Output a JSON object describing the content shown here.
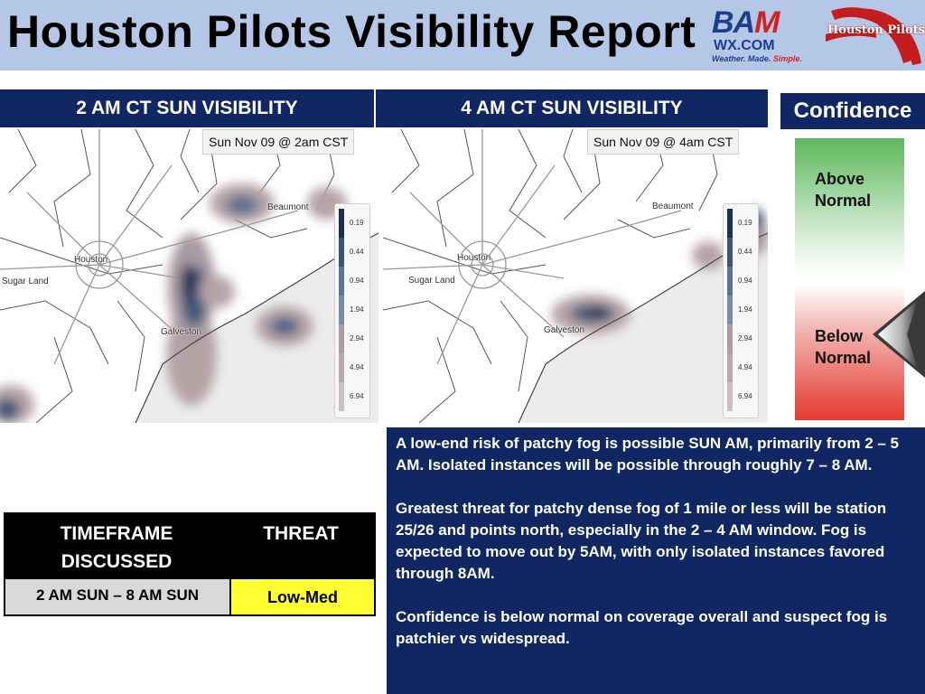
{
  "header": {
    "title": "Houston Pilots Visibility Report",
    "logo_bam": {
      "brand_left": "BA",
      "brand_mid": "M",
      "site": "WX.COM",
      "tagline_left": "Weather. Made. ",
      "tagline_right": "Simple."
    },
    "logo_hp": {
      "text": "Houston Pilots"
    }
  },
  "panels": [
    {
      "heading": "2 AM CT SUN VISIBILITY",
      "timestamp": "Sun Nov 09 @ 2am CST",
      "cities": [
        "Beaumont",
        "Houston",
        "Sugar Land",
        "Galveston"
      ]
    },
    {
      "heading": "4 AM CT SUN VISIBILITY",
      "timestamp": "Sun Nov 09 @ 4am CST",
      "cities": [
        "Beaumont",
        "Houston",
        "Sugar Land",
        "Galveston"
      ]
    }
  ],
  "legend": {
    "labels": [
      "0.19",
      "0.44",
      "0.94",
      "1.94",
      "2.94",
      "4.94",
      "6.94"
    ],
    "colors": [
      "#1f2f4f",
      "#3d5478",
      "#5d7392",
      "#7d8ca5",
      "#a89ea3",
      "#b8a9ad",
      "#c9bfc2"
    ]
  },
  "confidence": {
    "heading": "Confidence",
    "above": [
      "Above",
      "Normal"
    ],
    "below": [
      "Below",
      "Normal"
    ],
    "indicator": "below-normal"
  },
  "table": {
    "col1_header": [
      "TIMEFRAME",
      "DISCUSSED"
    ],
    "col2_header": "THREAT",
    "timeframe": "2 AM SUN – 8 AM SUN",
    "threat": "Low-Med",
    "threat_color": "#ffff33"
  },
  "discussion": {
    "paragraphs": [
      "A low-end risk of patchy fog is possible SUN AM, primarily from 2 – 5 AM.  Isolated instances will be possible through roughly 7 – 8 AM.",
      "Greatest threat for patchy dense fog of 1 mile or less will be station 25/26 and points north, especially in the 2 – 4 AM window. Fog is expected to move out by 5AM, with only isolated instances favored through 8AM.",
      "Confidence is below normal on coverage overall and suspect fog is patchier vs widespread."
    ]
  }
}
